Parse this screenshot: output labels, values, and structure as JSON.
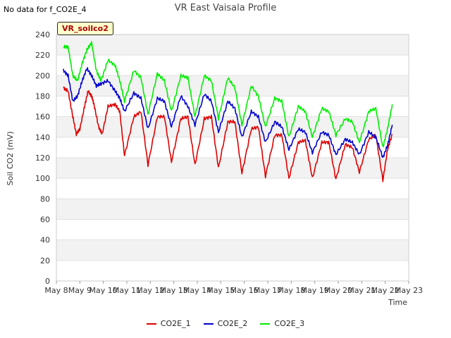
{
  "notice": "No data for f_CO2E_4",
  "badge": "VR_soilco2",
  "legend": [
    {
      "label": "CO2E_1",
      "color": "#dd0000"
    },
    {
      "label": "CO2E_2",
      "color": "#0000cc"
    },
    {
      "label": "CO2E_3",
      "color": "#00ee00"
    }
  ],
  "chart_data": {
    "type": "line",
    "title": "VR East Vaisala Profile",
    "xlabel": "Time",
    "ylabel": "Soil CO2 (mV)",
    "ylim": [
      0,
      240
    ],
    "yticks": [
      0,
      20,
      40,
      60,
      80,
      100,
      120,
      140,
      160,
      180,
      200,
      220,
      240
    ],
    "xlim": [
      8,
      23
    ],
    "xticks": [
      {
        "day": 8,
        "label": "May 8"
      },
      {
        "day": 9,
        "label": "May 9"
      },
      {
        "day": 10,
        "label": "May 10"
      },
      {
        "day": 11,
        "label": "May 11"
      },
      {
        "day": 12,
        "label": "May 12"
      },
      {
        "day": 13,
        "label": "May 13"
      },
      {
        "day": 14,
        "label": "May 14"
      },
      {
        "day": 15,
        "label": "May 15"
      },
      {
        "day": 16,
        "label": "May 16"
      },
      {
        "day": 17,
        "label": "May 17"
      },
      {
        "day": 18,
        "label": "May 18"
      },
      {
        "day": 19,
        "label": "May 19"
      },
      {
        "day": 20,
        "label": "May 20"
      },
      {
        "day": 21,
        "label": "May 21"
      },
      {
        "day": 22,
        "label": "May 22"
      },
      {
        "day": 23,
        "label": "May 23"
      }
    ],
    "grid": true,
    "series": [
      {
        "name": "CO2E_1",
        "color": "#dd0000",
        "x": [
          8.3,
          8.5,
          8.7,
          8.85,
          9.0,
          9.2,
          9.35,
          9.5,
          9.6,
          9.8,
          9.95,
          10.2,
          10.5,
          10.7,
          10.9,
          11.3,
          11.6,
          11.9,
          12.3,
          12.6,
          12.9,
          13.3,
          13.6,
          13.9,
          14.3,
          14.6,
          14.9,
          15.3,
          15.6,
          15.9,
          16.3,
          16.6,
          16.9,
          17.3,
          17.6,
          17.9,
          18.3,
          18.6,
          18.9,
          19.3,
          19.6,
          19.9,
          20.3,
          20.6,
          20.9,
          21.3,
          21.6,
          21.9,
          22.1,
          22.3
        ],
        "y": [
          188,
          185,
          160,
          143,
          148,
          170,
          185,
          180,
          172,
          150,
          143,
          170,
          172,
          165,
          122,
          160,
          165,
          113,
          160,
          160,
          116,
          158,
          160,
          113,
          158,
          160,
          110,
          155,
          155,
          105,
          148,
          150,
          102,
          142,
          142,
          100,
          135,
          137,
          100,
          135,
          135,
          99,
          133,
          130,
          106,
          138,
          142,
          98,
          128,
          143
        ]
      },
      {
        "name": "CO2E_2",
        "color": "#0000cc",
        "x": [
          8.3,
          8.5,
          8.7,
          8.9,
          9.1,
          9.3,
          9.5,
          9.7,
          9.9,
          10.2,
          10.5,
          10.7,
          10.9,
          11.3,
          11.6,
          11.9,
          12.3,
          12.6,
          12.9,
          13.3,
          13.6,
          13.9,
          14.3,
          14.6,
          14.9,
          15.3,
          15.6,
          15.9,
          16.3,
          16.6,
          16.9,
          17.3,
          17.6,
          17.9,
          18.3,
          18.6,
          18.9,
          19.3,
          19.6,
          19.9,
          20.3,
          20.6,
          20.9,
          21.3,
          21.6,
          21.9,
          22.1,
          22.3
        ],
        "y": [
          205,
          200,
          175,
          180,
          195,
          207,
          200,
          190,
          192,
          195,
          185,
          178,
          165,
          183,
          178,
          148,
          178,
          175,
          150,
          180,
          170,
          152,
          182,
          175,
          145,
          175,
          168,
          140,
          165,
          160,
          135,
          155,
          150,
          128,
          148,
          145,
          125,
          145,
          142,
          123,
          138,
          135,
          123,
          145,
          140,
          120,
          132,
          152
        ]
      },
      {
        "name": "CO2E_3",
        "color": "#00ee00",
        "x": [
          8.3,
          8.5,
          8.7,
          8.9,
          9.1,
          9.3,
          9.5,
          9.7,
          9.9,
          10.2,
          10.5,
          10.7,
          10.9,
          11.3,
          11.6,
          11.9,
          12.3,
          12.6,
          12.9,
          13.3,
          13.6,
          13.9,
          14.3,
          14.6,
          14.9,
          15.3,
          15.6,
          15.9,
          16.3,
          16.6,
          16.9,
          17.3,
          17.6,
          17.9,
          18.3,
          18.6,
          18.9,
          19.3,
          19.6,
          19.9,
          20.3,
          20.6,
          20.9,
          21.3,
          21.6,
          21.9,
          22.1,
          22.3
        ],
        "y": [
          228,
          228,
          200,
          195,
          212,
          225,
          232,
          205,
          195,
          215,
          210,
          195,
          175,
          205,
          198,
          162,
          202,
          195,
          165,
          200,
          198,
          160,
          200,
          195,
          158,
          198,
          188,
          152,
          190,
          180,
          150,
          178,
          175,
          140,
          170,
          165,
          140,
          168,
          165,
          142,
          158,
          155,
          135,
          165,
          168,
          130,
          148,
          172
        ]
      }
    ]
  }
}
